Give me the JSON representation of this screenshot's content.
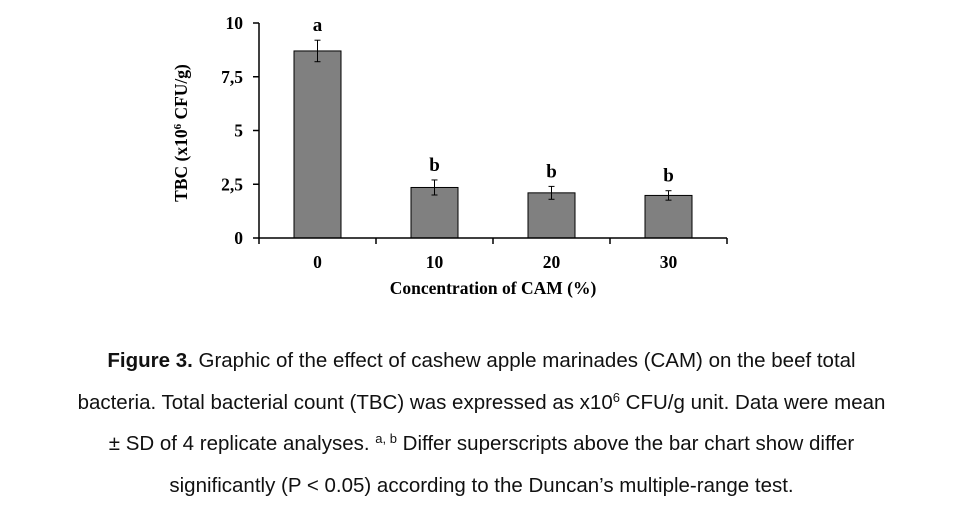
{
  "chart_data": {
    "type": "bar",
    "categories": [
      "0",
      "10",
      "20",
      "30"
    ],
    "values": [
      8.7,
      2.35,
      2.1,
      1.98
    ],
    "errors": [
      0.5,
      0.35,
      0.3,
      0.22
    ],
    "significance_labels": [
      "a",
      "b",
      "b",
      "b"
    ],
    "title": "",
    "xlabel": "Concentration of CAM (%)",
    "ylabel": {
      "main": "TBC (x10",
      "sup": "6",
      "unit": " CFU/g)"
    },
    "ylim": [
      0,
      10
    ],
    "yticks": [
      "0",
      "2,5",
      "5",
      "7,5",
      "10"
    ],
    "ytick_values": [
      0,
      2.5,
      5,
      7.5,
      10
    ],
    "grid": false,
    "legend": "none",
    "bar_color": "#808080",
    "bar_edge_color": "#000000"
  },
  "caption": {
    "label": "Figure 3.",
    "line1": " Graphic of the effect of cashew apple marinades (CAM) on the beef total",
    "line2_a": "bacteria. Total bacterial count (TBC) was expressed as x10",
    "line2_sup": "6",
    "line2_b": " CFU/g unit. Data were mean",
    "line3_a": "± SD of 4 replicate analyses. ",
    "line3_sup": "a, b",
    "line3_b": " Differ superscripts above the bar chart show differ",
    "line4": "significantly (P < 0.05) according to the Duncan’s multiple-range test."
  }
}
